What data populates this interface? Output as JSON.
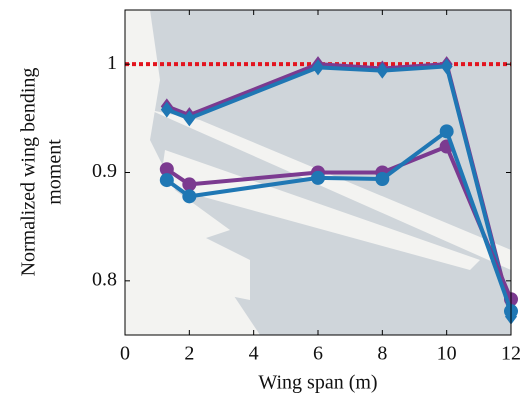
{
  "chart_data": {
    "type": "line",
    "xlabel": "Wing span (m)",
    "ylabel": [
      "Normalized wing bending",
      "moment"
    ],
    "x": [
      1.3,
      2,
      6,
      8,
      10,
      12
    ],
    "series": [
      {
        "color": "#7b3a90",
        "marker": "diamond",
        "values": [
          0.961,
          0.953,
          1.0,
          0.996,
          1.0,
          0.77
        ]
      },
      {
        "color": "#1f77b4",
        "marker": "diamond",
        "values": [
          0.958,
          0.95,
          0.997,
          0.994,
          0.998,
          0.767
        ]
      },
      {
        "color": "#7b3a90",
        "marker": "circle",
        "values": [
          0.903,
          0.889,
          0.9,
          0.9,
          0.924,
          0.783
        ]
      },
      {
        "color": "#1f77b4",
        "marker": "circle",
        "values": [
          0.893,
          0.878,
          0.895,
          0.894,
          0.938,
          0.772
        ]
      }
    ],
    "reference": {
      "value": 1,
      "color": "#e3141e"
    },
    "xlim": [
      0,
      12
    ],
    "xticks": [
      0,
      2,
      4,
      6,
      8,
      10,
      12
    ],
    "ylim": [
      0.75,
      1.05
    ],
    "yticks": [
      0.8,
      0.9,
      1
    ]
  }
}
